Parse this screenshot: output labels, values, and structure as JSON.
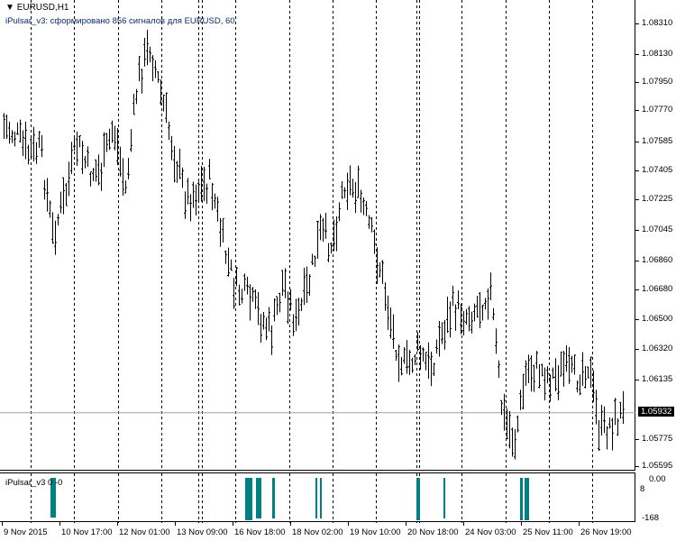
{
  "chart": {
    "symbol_title": "EURUSD,H1",
    "indicator_text": "iPulsar_v3: сформировано 856 сигналов для EURUSD, 60",
    "current_price": "1.05932",
    "price_labels": [
      "1.08310",
      "1.08130",
      "1.07950",
      "1.07770",
      "1.07585",
      "1.07405",
      "1.07225",
      "1.07045",
      "1.06860",
      "1.06680",
      "1.06500",
      "1.06320",
      "1.06135",
      "1.05775",
      "1.05595"
    ],
    "price_axis": {
      "max": 1.0831,
      "min": 1.05595
    },
    "time_labels": [
      "9 Nov 2015",
      "10 Nov 17:00",
      "12 Nov 01:00",
      "13 Nov 09:00",
      "16 Nov 18:00",
      "18 Nov 02:00",
      "19 Nov 10:00",
      "20 Nov 18:00",
      "24 Nov 03:00",
      "25 Nov 11:00",
      "26 Nov 19:00"
    ],
    "bar_color": "#000000",
    "approx_mid_prices": [
      1.07682,
      1.07627,
      1.07517,
      1.07545,
      1.07022,
      1.07242,
      1.07572,
      1.07407,
      1.07407,
      1.07682,
      1.07297,
      1.07958,
      1.08178,
      1.07848,
      1.07517,
      1.07242,
      1.07297,
      1.07352,
      1.06967,
      1.06692,
      1.06637,
      1.06527,
      1.06416,
      1.06747,
      1.06472,
      1.06692,
      1.07022,
      1.06967,
      1.07352,
      1.07297,
      1.07077,
      1.06802,
      1.06416,
      1.06196,
      1.06306,
      1.06196,
      1.06416,
      1.06582,
      1.06527,
      1.06582,
      1.06692,
      1.05921,
      1.05756,
      1.06196,
      1.06196,
      1.06141,
      1.06196,
      1.06141,
      1.06251,
      1.05811,
      1.05866,
      1.05932
    ]
  },
  "indicator": {
    "label": "iPulsar_v3 0 -0",
    "scale_top": "0.00",
    "scale_top_overlap": "8",
    "scale_bottom": "-168",
    "color": "#008080"
  }
}
